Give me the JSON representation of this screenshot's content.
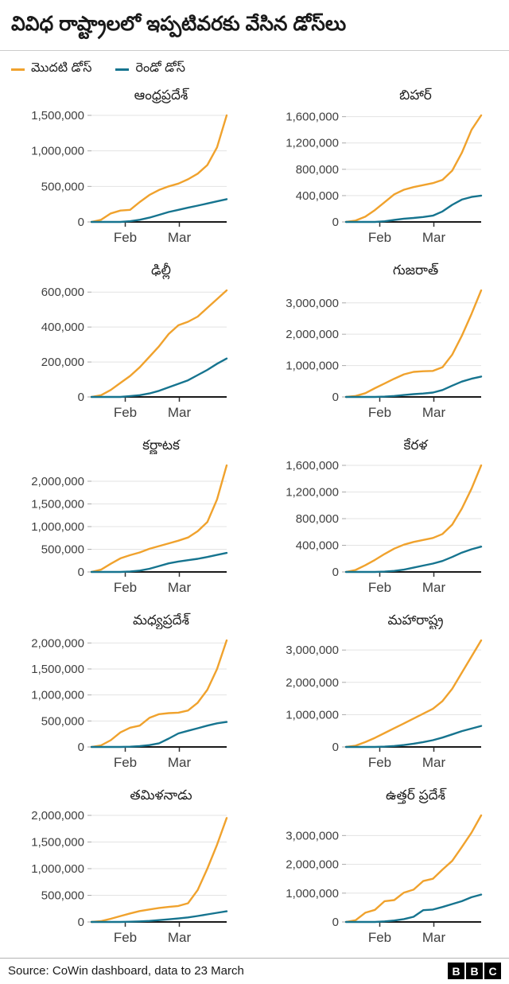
{
  "title": "వివిధ రాష్ట్రాలలో ఇప్పటివరకు వేసిన డోస్‌లు",
  "legend": [
    {
      "label": "మొదటి డోస్",
      "color": "#F0A22D"
    },
    {
      "label": "రెండో డోస్",
      "color": "#16748F"
    }
  ],
  "colors": {
    "first_dose": "#F0A22D",
    "second_dose": "#16748F",
    "grid": "#e3e3e3",
    "axis": "#1a1a1a",
    "tick_text": "#404040"
  },
  "footer": {
    "source": "Source: CoWin dashboard, data to 23 March",
    "logo": [
      "B",
      "B",
      "C"
    ]
  },
  "chart_data": [
    {
      "type": "line",
      "title": "ఆంధ్రప్రదేశ్",
      "y_ticks": [
        0,
        500000,
        1000000,
        1500000
      ],
      "x_ticks": [
        {
          "label": "Feb",
          "t": 0.25
        },
        {
          "label": "Mar",
          "t": 0.65
        }
      ],
      "series": [
        {
          "name": "మొదటి డోస్",
          "color_key": "first_dose",
          "values": [
            0,
            30000,
            120000,
            160000,
            170000,
            280000,
            380000,
            450000,
            500000,
            540000,
            600000,
            680000,
            800000,
            1050000,
            1500000
          ]
        },
        {
          "name": "రెండో డోస్",
          "color_key": "second_dose",
          "values": [
            0,
            0,
            0,
            0,
            10000,
            30000,
            60000,
            100000,
            140000,
            170000,
            200000,
            230000,
            260000,
            290000,
            320000
          ]
        }
      ]
    },
    {
      "type": "line",
      "title": "బిహార్",
      "y_ticks": [
        0,
        400000,
        800000,
        1200000,
        1600000
      ],
      "x_ticks": [
        {
          "label": "Feb",
          "t": 0.25
        },
        {
          "label": "Mar",
          "t": 0.65
        }
      ],
      "series": [
        {
          "name": "మొదటి డోస్",
          "color_key": "first_dose",
          "values": [
            0,
            20000,
            80000,
            180000,
            300000,
            420000,
            490000,
            530000,
            560000,
            590000,
            640000,
            780000,
            1050000,
            1400000,
            1620000
          ]
        },
        {
          "name": "రెండో డోస్",
          "color_key": "second_dose",
          "values": [
            0,
            0,
            0,
            0,
            10000,
            30000,
            50000,
            60000,
            75000,
            95000,
            160000,
            260000,
            340000,
            380000,
            400000
          ]
        }
      ]
    },
    {
      "type": "line",
      "title": "ఢిల్లీ",
      "y_ticks": [
        0,
        200000,
        400000,
        600000
      ],
      "x_ticks": [
        {
          "label": "Feb",
          "t": 0.25
        },
        {
          "label": "Mar",
          "t": 0.65
        }
      ],
      "series": [
        {
          "name": "మొదటి డోస్",
          "color_key": "first_dose",
          "values": [
            0,
            10000,
            40000,
            80000,
            120000,
            170000,
            230000,
            290000,
            360000,
            410000,
            430000,
            460000,
            510000,
            560000,
            610000
          ]
        },
        {
          "name": "రెండో డోస్",
          "color_key": "second_dose",
          "values": [
            0,
            0,
            0,
            0,
            5000,
            10000,
            20000,
            35000,
            55000,
            75000,
            95000,
            125000,
            155000,
            190000,
            220000
          ]
        }
      ]
    },
    {
      "type": "line",
      "title": "గుజరాత్",
      "y_ticks": [
        0,
        1000000,
        2000000,
        3000000
      ],
      "x_ticks": [
        {
          "label": "Feb",
          "t": 0.25
        },
        {
          "label": "Mar",
          "t": 0.65
        }
      ],
      "series": [
        {
          "name": "మొదటి డోస్",
          "color_key": "first_dose",
          "values": [
            0,
            30000,
            120000,
            280000,
            430000,
            580000,
            720000,
            800000,
            820000,
            830000,
            950000,
            1350000,
            1950000,
            2650000,
            3400000
          ]
        },
        {
          "name": "రెండో డోస్",
          "color_key": "second_dose",
          "values": [
            0,
            0,
            0,
            0,
            10000,
            30000,
            60000,
            90000,
            110000,
            140000,
            220000,
            360000,
            490000,
            580000,
            650000
          ]
        }
      ]
    },
    {
      "type": "line",
      "title": "కర్ణాటక",
      "y_ticks": [
        0,
        500000,
        1000000,
        1500000,
        2000000
      ],
      "x_ticks": [
        {
          "label": "Feb",
          "t": 0.25
        },
        {
          "label": "Mar",
          "t": 0.65
        }
      ],
      "series": [
        {
          "name": "మొదటి డోస్",
          "color_key": "first_dose",
          "values": [
            0,
            50000,
            180000,
            300000,
            370000,
            430000,
            510000,
            570000,
            630000,
            690000,
            760000,
            900000,
            1100000,
            1600000,
            2350000
          ]
        },
        {
          "name": "రెండో డోస్",
          "color_key": "second_dose",
          "values": [
            0,
            0,
            0,
            0,
            10000,
            30000,
            70000,
            130000,
            190000,
            230000,
            260000,
            290000,
            330000,
            375000,
            420000
          ]
        }
      ]
    },
    {
      "type": "line",
      "title": "కేరళ",
      "y_ticks": [
        0,
        400000,
        800000,
        1200000,
        1600000
      ],
      "x_ticks": [
        {
          "label": "Feb",
          "t": 0.25
        },
        {
          "label": "Mar",
          "t": 0.65
        }
      ],
      "series": [
        {
          "name": "మొదటి డోస్",
          "color_key": "first_dose",
          "values": [
            0,
            30000,
            100000,
            180000,
            270000,
            350000,
            410000,
            450000,
            480000,
            510000,
            570000,
            710000,
            950000,
            1250000,
            1600000
          ]
        },
        {
          "name": "రెండో డోస్",
          "color_key": "second_dose",
          "values": [
            0,
            0,
            0,
            0,
            5000,
            15000,
            35000,
            65000,
            95000,
            125000,
            165000,
            225000,
            290000,
            340000,
            380000
          ]
        }
      ]
    },
    {
      "type": "line",
      "title": "మధ్యప్రదేశ్",
      "y_ticks": [
        0,
        500000,
        1000000,
        1500000,
        2000000
      ],
      "x_ticks": [
        {
          "label": "Feb",
          "t": 0.25
        },
        {
          "label": "Mar",
          "t": 0.65
        }
      ],
      "series": [
        {
          "name": "మొదటి డోస్",
          "color_key": "first_dose",
          "values": [
            0,
            30000,
            130000,
            280000,
            370000,
            410000,
            560000,
            630000,
            650000,
            660000,
            700000,
            850000,
            1100000,
            1500000,
            2050000
          ]
        },
        {
          "name": "రెండో డోస్",
          "color_key": "second_dose",
          "values": [
            0,
            0,
            0,
            0,
            5000,
            15000,
            35000,
            70000,
            160000,
            260000,
            310000,
            360000,
            410000,
            455000,
            480000
          ]
        }
      ]
    },
    {
      "type": "line",
      "title": "మహారాష్ట్ర",
      "y_ticks": [
        0,
        1000000,
        2000000,
        3000000
      ],
      "x_ticks": [
        {
          "label": "Feb",
          "t": 0.25
        },
        {
          "label": "Mar",
          "t": 0.65
        }
      ],
      "series": [
        {
          "name": "మొదటి డోస్",
          "color_key": "first_dose",
          "values": [
            0,
            40000,
            150000,
            280000,
            430000,
            580000,
            730000,
            880000,
            1030000,
            1180000,
            1420000,
            1800000,
            2300000,
            2800000,
            3300000
          ]
        },
        {
          "name": "రెండో డోస్",
          "color_key": "second_dose",
          "values": [
            0,
            0,
            0,
            0,
            10000,
            30000,
            60000,
            100000,
            150000,
            210000,
            290000,
            390000,
            490000,
            570000,
            650000
          ]
        }
      ]
    },
    {
      "type": "line",
      "title": "తమిళనాడు",
      "y_ticks": [
        0,
        500000,
        1000000,
        1500000,
        2000000
      ],
      "x_ticks": [
        {
          "label": "Feb",
          "t": 0.25
        },
        {
          "label": "Mar",
          "t": 0.65
        }
      ],
      "series": [
        {
          "name": "మొదటి డోస్",
          "color_key": "first_dose",
          "values": [
            0,
            15000,
            60000,
            110000,
            160000,
            205000,
            235000,
            262000,
            282000,
            300000,
            350000,
            600000,
            1000000,
            1450000,
            1950000
          ]
        },
        {
          "name": "రెండో డోస్",
          "color_key": "second_dose",
          "values": [
            0,
            0,
            0,
            0,
            5000,
            10000,
            20000,
            35000,
            50000,
            65000,
            85000,
            112000,
            142000,
            172000,
            200000
          ]
        }
      ]
    },
    {
      "type": "line",
      "title": "ఉత్తర్ ప్రదేశ్",
      "y_ticks": [
        0,
        1000000,
        2000000,
        3000000
      ],
      "x_ticks": [
        {
          "label": "Feb",
          "t": 0.25
        },
        {
          "label": "Mar",
          "t": 0.65
        }
      ],
      "series": [
        {
          "name": "మొదటి డోస్",
          "color_key": "first_dose",
          "values": [
            0,
            60000,
            320000,
            420000,
            720000,
            760000,
            1020000,
            1120000,
            1420000,
            1500000,
            1820000,
            2120000,
            2600000,
            3100000,
            3700000
          ]
        },
        {
          "name": "రెండో డోస్",
          "color_key": "second_dose",
          "values": [
            0,
            0,
            0,
            0,
            20000,
            50000,
            100000,
            180000,
            410000,
            430000,
            520000,
            620000,
            720000,
            860000,
            950000
          ]
        }
      ]
    }
  ]
}
